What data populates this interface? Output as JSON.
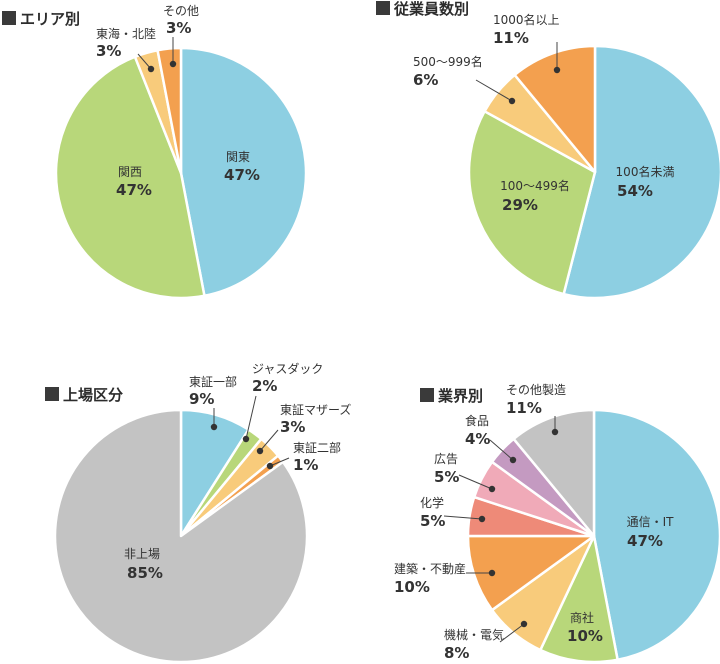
{
  "chart_data": [
    {
      "type": "pie",
      "title": "エリア別",
      "slices": [
        {
          "label": "関東",
          "value": 47,
          "pct_text": "47%",
          "color": "#8dcfe2"
        },
        {
          "label": "関西",
          "value": 47,
          "pct_text": "47%",
          "color": "#b8d77a"
        },
        {
          "label": "東海・北陸",
          "value": 3,
          "pct_text": "3%",
          "color": "#f8cb7b"
        },
        {
          "label": "その他",
          "value": 3,
          "pct_text": "3%",
          "color": "#f3a04f"
        }
      ]
    },
    {
      "type": "pie",
      "title": "従業員数別",
      "slices": [
        {
          "label": "100名未満",
          "value": 54,
          "pct_text": "54%",
          "color": "#8dcfe2"
        },
        {
          "label": "100～499名",
          "value": 29,
          "pct_text": "29%",
          "color": "#b8d77a"
        },
        {
          "label": "500～999名",
          "value": 6,
          "pct_text": "6%",
          "color": "#f8cb7b"
        },
        {
          "label": "1000名以上",
          "value": 11,
          "pct_text": "11%",
          "color": "#f3a04f"
        }
      ]
    },
    {
      "type": "pie",
      "title": "上場区分",
      "slices": [
        {
          "label": "東証一部",
          "value": 9,
          "pct_text": "9%",
          "color": "#8dcfe2"
        },
        {
          "label": "ジャスダック",
          "value": 2,
          "pct_text": "2%",
          "color": "#b8d77a"
        },
        {
          "label": "東証マザーズ",
          "value": 3,
          "pct_text": "3%",
          "color": "#f8cb7b"
        },
        {
          "label": "東証二部",
          "value": 1,
          "pct_text": "1%",
          "color": "#f3a04f"
        },
        {
          "label": "非上場",
          "value": 85,
          "pct_text": "85%",
          "color": "#c3c3c3"
        }
      ]
    },
    {
      "type": "pie",
      "title": "業界別",
      "slices": [
        {
          "label": "通信・IT",
          "value": 47,
          "pct_text": "47%",
          "color": "#8dcfe2"
        },
        {
          "label": "商社",
          "value": 10,
          "pct_text": "10%",
          "color": "#b8d77a"
        },
        {
          "label": "機械・電気",
          "value": 8,
          "pct_text": "8%",
          "color": "#f8cb7b"
        },
        {
          "label": "建築・不動産",
          "value": 10,
          "pct_text": "10%",
          "color": "#f3a04f"
        },
        {
          "label": "化学",
          "value": 5,
          "pct_text": "5%",
          "color": "#ee8a78"
        },
        {
          "label": "広告",
          "value": 5,
          "pct_text": "5%",
          "color": "#f0aab8"
        },
        {
          "label": "食品",
          "value": 4,
          "pct_text": "4%",
          "color": "#c49ac1"
        },
        {
          "label": "その他製造",
          "value": 11,
          "pct_text": "11%",
          "color": "#c3c3c3"
        }
      ]
    }
  ]
}
